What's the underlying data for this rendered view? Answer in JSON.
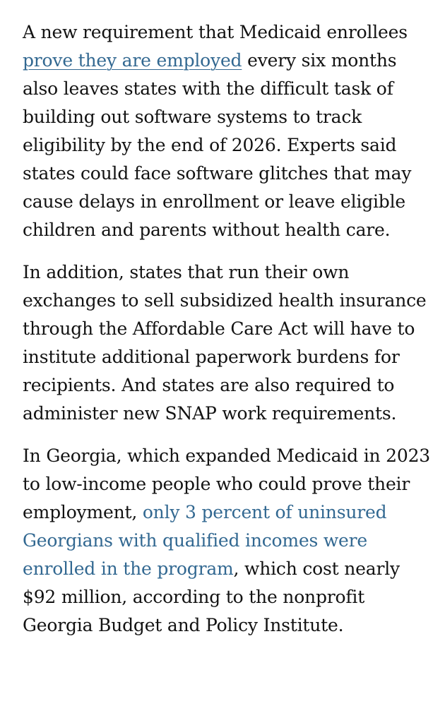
{
  "article": {
    "p1": {
      "before": "A new requirement that Medicaid enrollees ",
      "link": "prove they are employed",
      "after": " every six months also leaves states with the difficult task of building out software systems to track eligibility by the end of 2026. Experts said states could face software glitches that may cause delays in enrollment or leave eligible children and parents without health care."
    },
    "p2": {
      "text": "In addition, states that run their own exchanges to sell subsidized health insurance through the Affordable Care Act will have to institute additional paperwork burdens for recipients. And states are also required to administer new SNAP work requirements."
    },
    "p3": {
      "before": "In Georgia, which expanded Medicaid in 2023 to low-income people who could prove their employment, ",
      "link": "only 3 percent of uninsured Georgians with qualified incomes were enrolled in the program",
      "after": ", which cost nearly $92 million, according to the nonprofit Georgia Budget and Policy Institute."
    }
  },
  "colors": {
    "text": "#121212",
    "link": "#326891",
    "background": "#ffffff"
  }
}
